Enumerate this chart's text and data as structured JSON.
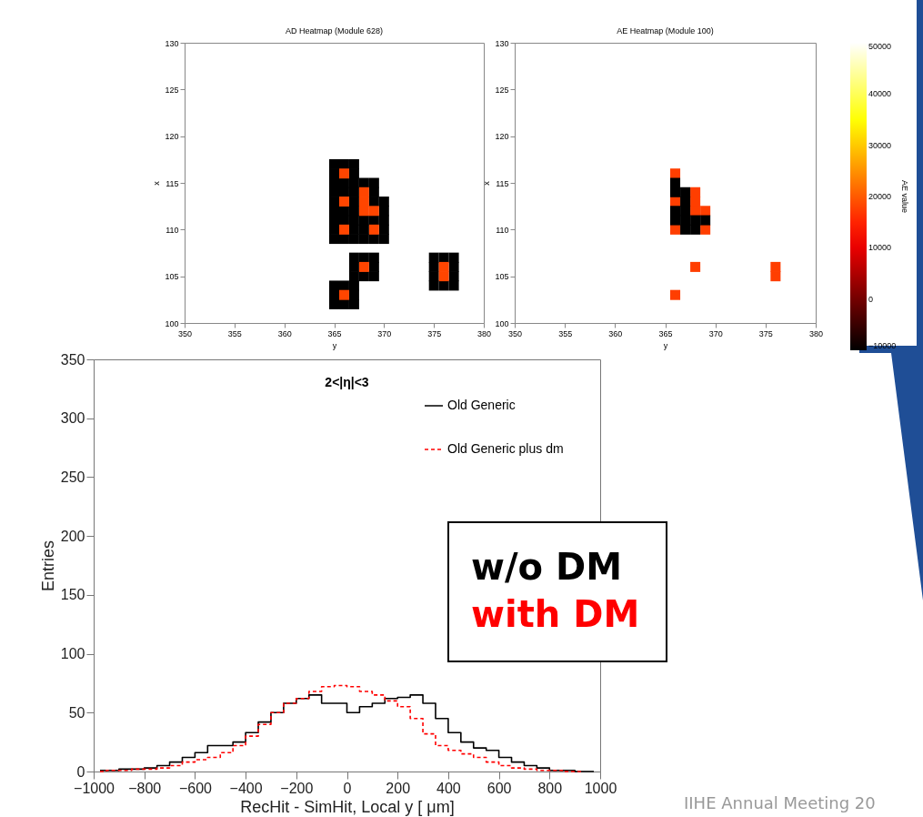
{
  "chart_data": [
    {
      "type": "scatter",
      "title": "AD Heatmap (Module 628)",
      "xlabel": "y",
      "ylabel": "x",
      "marker": "square",
      "xlim": [
        350,
        380
      ],
      "xticks": [
        350,
        355,
        360,
        365,
        370,
        375,
        380
      ],
      "ylim": [
        100,
        130
      ],
      "yticks": [
        100,
        105,
        110,
        115,
        120,
        125,
        130
      ],
      "series": [
        {
          "color": "#000000",
          "x": [
            365,
            365,
            365,
            365,
            365,
            365,
            365,
            365,
            365,
            366,
            366,
            366,
            366,
            366,
            366,
            367,
            367,
            367,
            367,
            367,
            367,
            367,
            367,
            367,
            368,
            368,
            368,
            368,
            369,
            369,
            369,
            369,
            369,
            370,
            370,
            370,
            370,
            370,
            367,
            367,
            367,
            368,
            368,
            369,
            369,
            369,
            365,
            365,
            365,
            366,
            366,
            367,
            367,
            367,
            375,
            375,
            375,
            375,
            376,
            376,
            377,
            377,
            377,
            377
          ],
          "values": [
            109,
            110,
            111,
            112,
            113,
            114,
            115,
            116,
            117,
            109,
            111,
            112,
            114,
            115,
            117,
            109,
            110,
            111,
            112,
            113,
            114,
            115,
            116,
            117,
            109,
            110,
            111,
            115,
            109,
            111,
            113,
            114,
            115,
            109,
            110,
            111,
            112,
            113,
            105,
            106,
            107,
            105,
            107,
            105,
            106,
            107,
            102,
            103,
            104,
            102,
            104,
            102,
            103,
            104,
            104,
            105,
            106,
            107,
            104,
            107,
            104,
            105,
            106,
            107
          ]
        },
        {
          "color": "#ff4500",
          "x": [
            366,
            366,
            366,
            368,
            368,
            368,
            369,
            369,
            368,
            366,
            376,
            376
          ],
          "values": [
            116,
            113,
            110,
            114,
            113,
            112,
            112,
            110,
            106,
            103,
            105,
            106
          ]
        }
      ]
    },
    {
      "type": "scatter",
      "title": "AE Heatmap (Module 100)",
      "xlabel": "y",
      "ylabel": "x",
      "marker": "square",
      "xlim": [
        350,
        380
      ],
      "xticks": [
        350,
        355,
        360,
        365,
        370,
        375,
        380
      ],
      "ylim": [
        100,
        130
      ],
      "yticks": [
        100,
        105,
        110,
        115,
        120,
        125,
        130
      ],
      "clabel": "AE value",
      "clim": [
        -10000,
        50000
      ],
      "cticks": [
        -10000,
        0,
        10000,
        20000,
        30000,
        40000,
        50000
      ],
      "series": [
        {
          "x": [
            366,
            366,
            366,
            368,
            368,
            368,
            369,
            369,
            368,
            366,
            376,
            376,
            366,
            366,
            366,
            366,
            367,
            367,
            367,
            367,
            367,
            368,
            368,
            369
          ],
          "values": [
            116,
            113,
            110,
            114,
            113,
            112,
            112,
            110,
            106,
            103,
            105,
            106,
            115,
            114,
            112,
            111,
            114,
            113,
            112,
            111,
            110,
            111,
            110,
            111
          ],
          "cvalues": [
            17500,
            17500,
            17500,
            17500,
            17500,
            17500,
            17500,
            17500,
            17500,
            17500,
            17500,
            17500,
            -10000,
            -10000,
            -10000,
            -10000,
            -10000,
            -10000,
            -10000,
            -10000,
            -10000,
            -10000,
            -10000,
            -10000
          ]
        }
      ]
    },
    {
      "type": "step",
      "title": "2<|η|<3",
      "xlabel": "RecHit - SimHit, Local y [ μm]",
      "ylabel": "Entries",
      "xlim": [
        -1000,
        1000
      ],
      "xticks": [
        -1000,
        -800,
        -600,
        -400,
        -200,
        0,
        200,
        400,
        600,
        800,
        1000
      ],
      "ylim": [
        0,
        350
      ],
      "yticks": [
        0,
        50,
        100,
        150,
        200,
        250,
        300,
        350
      ],
      "legend": "top right",
      "x": [
        -975,
        -925,
        -875,
        -825,
        -775,
        -725,
        -675,
        -625,
        -575,
        -525,
        -475,
        -425,
        -375,
        -325,
        -275,
        -225,
        -175,
        -125,
        -75,
        -25,
        25,
        75,
        125,
        175,
        225,
        275,
        325,
        375,
        425,
        475,
        525,
        575,
        625,
        675,
        725,
        775,
        825,
        875,
        925,
        975
      ],
      "series": [
        {
          "name": "Old Generic",
          "color": "#000000",
          "line_style": "solid",
          "values": [
            1,
            1,
            2,
            2,
            3,
            5,
            8,
            12,
            16,
            22,
            22,
            25,
            33,
            42,
            50,
            58,
            62,
            65,
            58,
            58,
            50,
            55,
            58,
            62,
            63,
            65,
            58,
            45,
            33,
            25,
            20,
            18,
            12,
            8,
            5,
            3,
            1,
            1,
            0,
            0
          ]
        },
        {
          "name": "Old Generic plus dm",
          "color": "#ff0000",
          "line_style": "dashed",
          "values": [
            0,
            1,
            1,
            2,
            2,
            3,
            5,
            8,
            10,
            12,
            16,
            22,
            30,
            40,
            50,
            58,
            62,
            68,
            72,
            73,
            72,
            68,
            65,
            60,
            55,
            45,
            32,
            22,
            18,
            15,
            12,
            8,
            5,
            3,
            2,
            1,
            1,
            0,
            0,
            null
          ]
        }
      ],
      "annotations": [
        "w/o DM",
        "with DM",
        "IIHE Annual Meeting 20"
      ]
    }
  ]
}
